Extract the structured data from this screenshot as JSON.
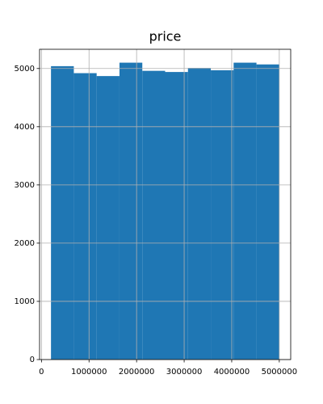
{
  "chart_data": {
    "type": "histogram",
    "title": "price",
    "bins": [
      200000,
      680000,
      1160000,
      1640000,
      2120000,
      2600000,
      3080000,
      3560000,
      4040000,
      4520000,
      5000000
    ],
    "values": [
      5040,
      4920,
      4870,
      5100,
      4960,
      4940,
      5010,
      4970,
      5100,
      5070
    ],
    "color": "#1f77b4",
    "xlim": [
      -40000,
      5240000
    ],
    "xticks": [
      0,
      1000000,
      2000000,
      3000000,
      4000000,
      5000000
    ],
    "ylim": [
      0,
      5330
    ],
    "yticks": [
      0,
      1000,
      2000,
      3000,
      4000,
      5000
    ],
    "grid": true
  }
}
